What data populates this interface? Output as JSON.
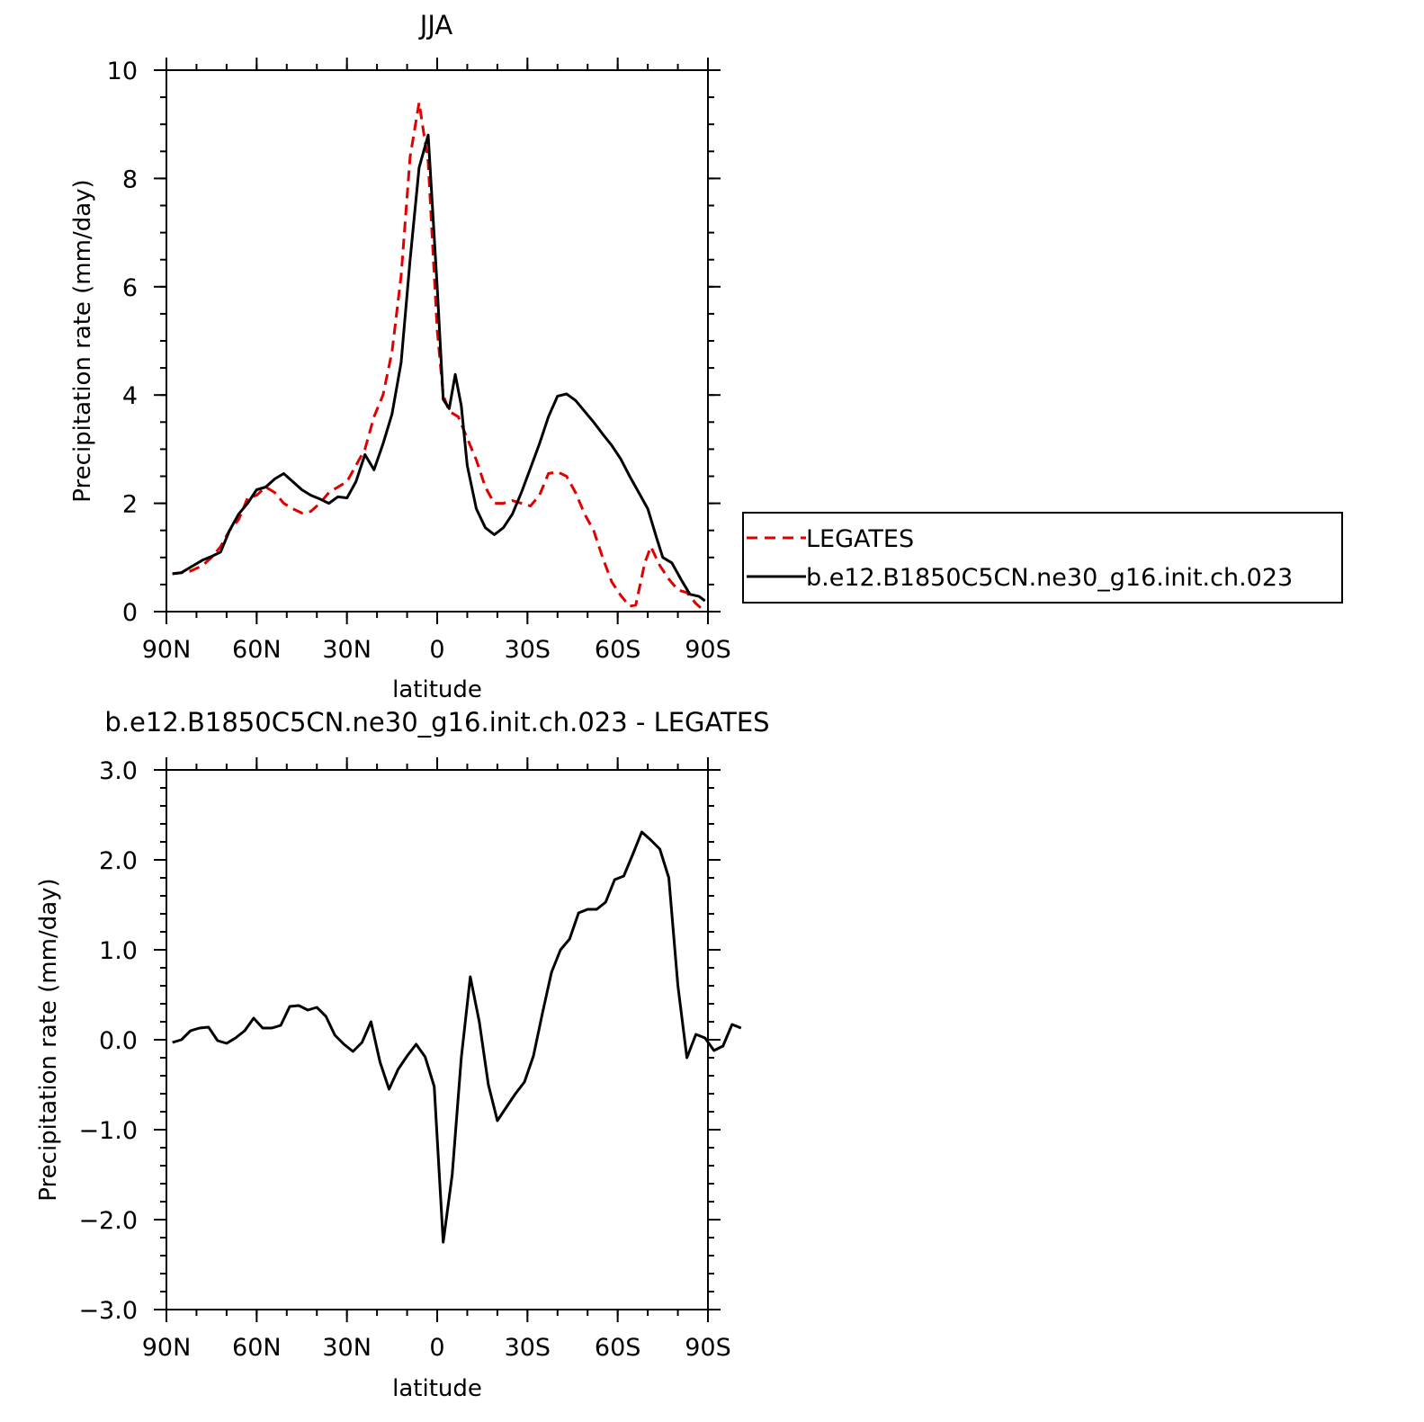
{
  "chart_data": [
    {
      "type": "line",
      "title": "JJA",
      "xlabel": "latitude",
      "ylabel": "Precipitation rate (mm/day)",
      "xlim": [
        90,
        -90
      ],
      "ylim": [
        0,
        10
      ],
      "x_ticks": [
        {
          "value": 90,
          "label": "90N"
        },
        {
          "value": 60,
          "label": "60N"
        },
        {
          "value": 30,
          "label": "30N"
        },
        {
          "value": 0,
          "label": "0"
        },
        {
          "value": -30,
          "label": "30S"
        },
        {
          "value": -60,
          "label": "60S"
        },
        {
          "value": -90,
          "label": "90S"
        }
      ],
      "y_ticks": [
        {
          "value": 0,
          "label": "0"
        },
        {
          "value": 2,
          "label": "2"
        },
        {
          "value": 4,
          "label": "4"
        },
        {
          "value": 6,
          "label": "6"
        },
        {
          "value": 8,
          "label": "8"
        },
        {
          "value": 10,
          "label": "10"
        }
      ],
      "legend": "right",
      "series": [
        {
          "name": "LEGATES",
          "color": "#e00000",
          "dash": "dashed",
          "points": [
            [
              88,
              0.7
            ],
            [
              85,
              0.72
            ],
            [
              82,
              0.75
            ],
            [
              78,
              0.85
            ],
            [
              75,
              1.0
            ],
            [
              72,
              1.2
            ],
            [
              69,
              1.5
            ],
            [
              66,
              1.7
            ],
            [
              63,
              2.1
            ],
            [
              60,
              2.15
            ],
            [
              57,
              2.3
            ],
            [
              54,
              2.2
            ],
            [
              51,
              2.0
            ],
            [
              48,
              1.9
            ],
            [
              45,
              1.82
            ],
            [
              42,
              1.85
            ],
            [
              39,
              2.0
            ],
            [
              36,
              2.2
            ],
            [
              33,
              2.3
            ],
            [
              30,
              2.4
            ],
            [
              27,
              2.7
            ],
            [
              24,
              3.0
            ],
            [
              21,
              3.6
            ],
            [
              18,
              4.0
            ],
            [
              15,
              4.8
            ],
            [
              12,
              6.2
            ],
            [
              9,
              8.4
            ],
            [
              6,
              9.4
            ],
            [
              3,
              8.3
            ],
            [
              0,
              5.2
            ],
            [
              -2,
              4.0
            ],
            [
              -4,
              3.7
            ],
            [
              -7,
              3.6
            ],
            [
              -10,
              3.2
            ],
            [
              -13,
              2.8
            ],
            [
              -16,
              2.3
            ],
            [
              -19,
              2.0
            ],
            [
              -22,
              2.0
            ],
            [
              -25,
              2.05
            ],
            [
              -28,
              2.0
            ],
            [
              -31,
              1.95
            ],
            [
              -34,
              2.15
            ],
            [
              -37,
              2.55
            ],
            [
              -40,
              2.58
            ],
            [
              -43,
              2.5
            ],
            [
              -46,
              2.2
            ],
            [
              -49,
              1.8
            ],
            [
              -52,
              1.5
            ],
            [
              -55,
              1.0
            ],
            [
              -58,
              0.55
            ],
            [
              -61,
              0.3
            ],
            [
              -64,
              0.1
            ],
            [
              -66,
              0.12
            ],
            [
              -69,
              0.9
            ],
            [
              -71,
              1.2
            ],
            [
              -74,
              0.85
            ],
            [
              -77,
              0.6
            ],
            [
              -80,
              0.4
            ],
            [
              -83,
              0.35
            ],
            [
              -86,
              0.15
            ],
            [
              -88,
              0.05
            ]
          ]
        },
        {
          "name": "b.e12.B1850C5CN.ne30_g16.init.ch.023",
          "color": "#000000",
          "dash": "solid",
          "points": [
            [
              88,
              0.7
            ],
            [
              85,
              0.72
            ],
            [
              82,
              0.82
            ],
            [
              78,
              0.95
            ],
            [
              75,
              1.02
            ],
            [
              72,
              1.1
            ],
            [
              69,
              1.5
            ],
            [
              66,
              1.8
            ],
            [
              63,
              2.0
            ],
            [
              60,
              2.25
            ],
            [
              57,
              2.3
            ],
            [
              54,
              2.45
            ],
            [
              51,
              2.55
            ],
            [
              48,
              2.4
            ],
            [
              45,
              2.25
            ],
            [
              42,
              2.15
            ],
            [
              39,
              2.08
            ],
            [
              36,
              2.0
            ],
            [
              33,
              2.12
            ],
            [
              30,
              2.1
            ],
            [
              27,
              2.4
            ],
            [
              24,
              2.9
            ],
            [
              21,
              2.62
            ],
            [
              18,
              3.1
            ],
            [
              15,
              3.65
            ],
            [
              12,
              4.6
            ],
            [
              9,
              6.5
            ],
            [
              6,
              8.2
            ],
            [
              3,
              8.8
            ],
            [
              0,
              6.0
            ],
            [
              -2,
              3.92
            ],
            [
              -4,
              3.75
            ],
            [
              -6,
              4.38
            ],
            [
              -8,
              3.8
            ],
            [
              -10,
              2.7
            ],
            [
              -13,
              1.9
            ],
            [
              -16,
              1.55
            ],
            [
              -19,
              1.42
            ],
            [
              -22,
              1.55
            ],
            [
              -25,
              1.8
            ],
            [
              -28,
              2.2
            ],
            [
              -31,
              2.65
            ],
            [
              -34,
              3.1
            ],
            [
              -37,
              3.6
            ],
            [
              -40,
              3.98
            ],
            [
              -43,
              4.02
            ],
            [
              -46,
              3.9
            ],
            [
              -49,
              3.7
            ],
            [
              -52,
              3.5
            ],
            [
              -55,
              3.28
            ],
            [
              -58,
              3.07
            ],
            [
              -61,
              2.82
            ],
            [
              -64,
              2.5
            ],
            [
              -67,
              2.2
            ],
            [
              -70,
              1.9
            ],
            [
              -73,
              1.35
            ],
            [
              -75,
              1.0
            ],
            [
              -78,
              0.9
            ],
            [
              -81,
              0.6
            ],
            [
              -84,
              0.32
            ],
            [
              -87,
              0.28
            ],
            [
              -89,
              0.2
            ]
          ]
        }
      ]
    },
    {
      "type": "line",
      "title": "b.e12.B1850C5CN.ne30_g16.init.ch.023 - LEGATES",
      "xlabel": "latitude",
      "ylabel": "Precipitation rate (mm/day)",
      "xlim": [
        90,
        -90
      ],
      "ylim": [
        -3,
        3
      ],
      "x_ticks": [
        {
          "value": 90,
          "label": "90N"
        },
        {
          "value": 60,
          "label": "60N"
        },
        {
          "value": 30,
          "label": "30N"
        },
        {
          "value": 0,
          "label": "0"
        },
        {
          "value": -30,
          "label": "30S"
        },
        {
          "value": -60,
          "label": "60S"
        },
        {
          "value": -90,
          "label": "90S"
        }
      ],
      "y_ticks": [
        {
          "value": -3,
          "label": "−3.0"
        },
        {
          "value": -2,
          "label": "−2.0"
        },
        {
          "value": -1,
          "label": "−1.0"
        },
        {
          "value": 0,
          "label": "0.0"
        },
        {
          "value": 1,
          "label": "1.0"
        },
        {
          "value": 2,
          "label": "2.0"
        },
        {
          "value": 3,
          "label": "3.0"
        }
      ],
      "series": [
        {
          "color": "#000000",
          "dash": "solid",
          "points": [
            [
              88,
              -0.03
            ],
            [
              85,
              0.0
            ],
            [
              82,
              0.1
            ],
            [
              79,
              0.13
            ],
            [
              76,
              0.14
            ],
            [
              73,
              -0.01
            ],
            [
              70,
              -0.04
            ],
            [
              67,
              0.02
            ],
            [
              64,
              0.1
            ],
            [
              61,
              0.24
            ],
            [
              58,
              0.13
            ],
            [
              55,
              0.13
            ],
            [
              52,
              0.16
            ],
            [
              49,
              0.37
            ],
            [
              46,
              0.38
            ],
            [
              43,
              0.33
            ],
            [
              40,
              0.36
            ],
            [
              37,
              0.26
            ],
            [
              34,
              0.05
            ],
            [
              31,
              -0.05
            ],
            [
              28,
              -0.13
            ],
            [
              25,
              -0.03
            ],
            [
              22,
              0.2
            ],
            [
              19,
              -0.25
            ],
            [
              16,
              -0.55
            ],
            [
              13,
              -0.33
            ],
            [
              10,
              -0.18
            ],
            [
              7,
              -0.05
            ],
            [
              4,
              -0.19
            ],
            [
              1,
              -0.52
            ],
            [
              -2,
              -2.25
            ],
            [
              -5,
              -1.5
            ],
            [
              -8,
              -0.2
            ],
            [
              -11,
              0.7
            ],
            [
              -14,
              0.2
            ],
            [
              -17,
              -0.5
            ],
            [
              -20,
              -0.9
            ],
            [
              -23,
              -0.75
            ],
            [
              -26,
              -0.6
            ],
            [
              -29,
              -0.47
            ],
            [
              -32,
              -0.18
            ],
            [
              -35,
              0.3
            ],
            [
              -38,
              0.75
            ],
            [
              -41,
              1.0
            ],
            [
              -44,
              1.12
            ],
            [
              -47,
              1.41
            ],
            [
              -50,
              1.45
            ],
            [
              -53,
              1.45
            ],
            [
              -56,
              1.53
            ],
            [
              -59,
              1.78
            ],
            [
              -62,
              1.82
            ],
            [
              -65,
              2.06
            ],
            [
              -68,
              2.31
            ],
            [
              -71,
              2.22
            ],
            [
              -74,
              2.12
            ],
            [
              -77,
              1.8
            ],
            [
              -80,
              0.6
            ],
            [
              -83,
              -0.2
            ],
            [
              -86,
              0.06
            ],
            [
              -89,
              0.02
            ],
            [
              -92,
              -0.12
            ],
            [
              -95,
              -0.07
            ],
            [
              -98,
              0.17
            ],
            [
              -101,
              0.13
            ]
          ]
        }
      ]
    }
  ]
}
